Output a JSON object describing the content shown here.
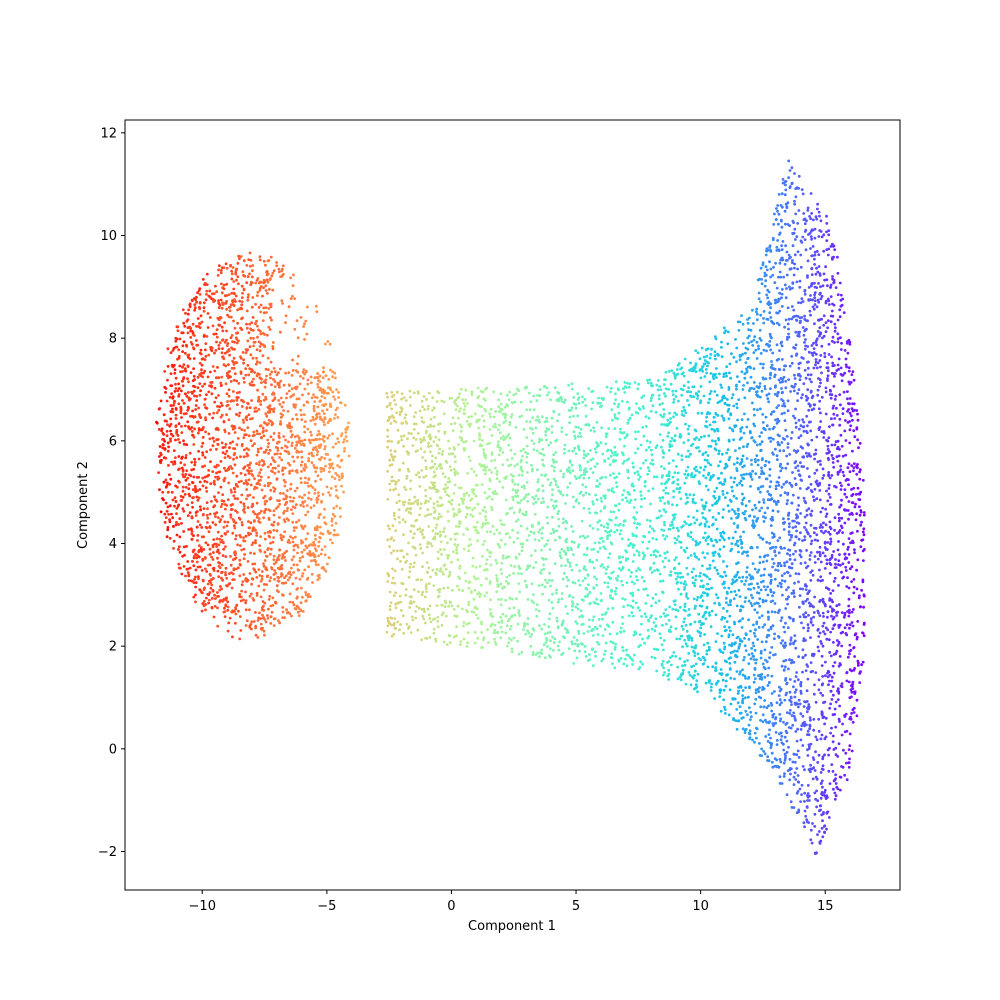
{
  "chart_data": {
    "type": "scatter",
    "title": "",
    "xlabel": "Component 1",
    "ylabel": "Component 2",
    "xlim": [
      -13.1,
      18.0
    ],
    "ylim": [
      -2.75,
      12.25
    ],
    "xticks": [
      -10,
      -5,
      0,
      5,
      10,
      15
    ],
    "yticks": [
      -2,
      0,
      2,
      4,
      6,
      8,
      10,
      12
    ],
    "xtick_labels": [
      "−10",
      "−5",
      "0",
      "5",
      "10",
      "15"
    ],
    "ytick_labels": [
      "−2",
      "0",
      "2",
      "4",
      "6",
      "8",
      "10",
      "12"
    ],
    "grid": false,
    "legend": "none",
    "colormap": "rainbow",
    "colormap_stops": [
      "#8000ff",
      "#4c6cfa",
      "#16c4e8",
      "#4cf2ce",
      "#b2f396",
      "#ffb360",
      "#ff5a2e",
      "#ff0000"
    ],
    "point_count_approx": 9000,
    "regions": [
      {
        "name": "left-lobe",
        "shape": "ellipse",
        "center": [
          -8.0,
          5.9
        ],
        "radii": [
          3.9,
          3.8
        ],
        "color_value_range": [
          0.65,
          1.0
        ]
      },
      {
        "name": "middle-band",
        "shape": "trapezoid",
        "x_range": [
          -2.6,
          8.5
        ],
        "top_y": [
          6.95,
          7.2
        ],
        "bottom_y": [
          2.2,
          1.4
        ],
        "color_value_range": [
          0.4,
          0.65
        ]
      },
      {
        "name": "right-fan",
        "shape": "fan",
        "x_range": [
          8.5,
          16.6
        ],
        "outline": [
          [
            8.5,
            7.3
          ],
          [
            12.0,
            8.6
          ],
          [
            13.5,
            11.5
          ],
          [
            15.3,
            10.2
          ],
          [
            16.0,
            8.0
          ],
          [
            16.6,
            5.0
          ],
          [
            16.6,
            2.0
          ],
          [
            16.0,
            -0.5
          ],
          [
            14.6,
            -2.1
          ],
          [
            13.0,
            -0.5
          ],
          [
            10.5,
            0.9
          ],
          [
            8.5,
            1.4
          ]
        ],
        "color_value_range": [
          0.0,
          0.4
        ]
      }
    ]
  }
}
